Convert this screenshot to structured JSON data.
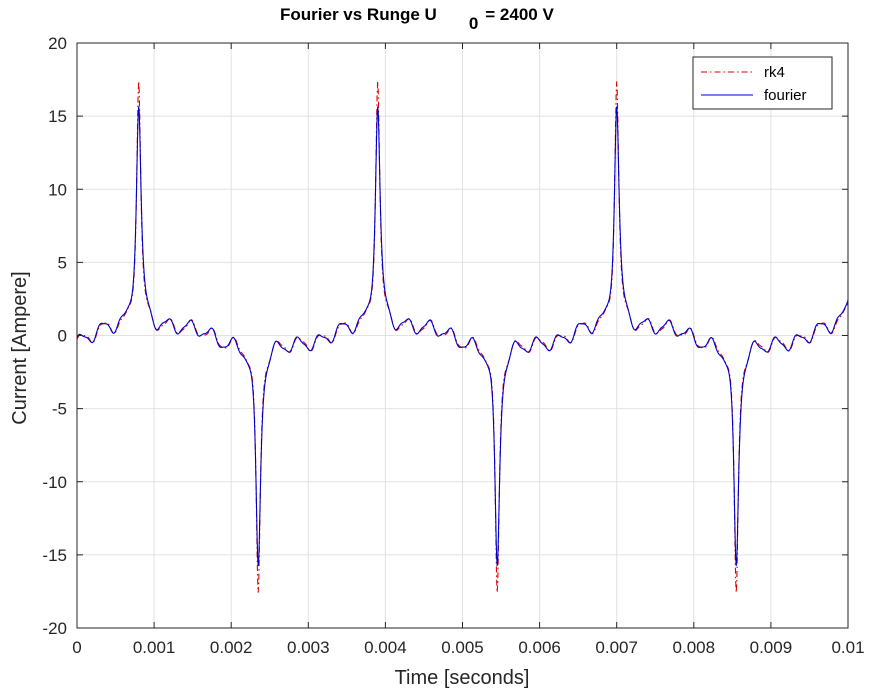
{
  "chart_data": {
    "type": "line",
    "title": {
      "main": "Fourier vs Runge U",
      "subscript": "0",
      "suffix": "= 2400 V"
    },
    "xlabel": "Time [seconds]",
    "ylabel": "Current [Ampere]",
    "xlim": [
      0,
      0.01
    ],
    "ylim": [
      -20,
      20
    ],
    "grid": true,
    "legend_position": "top-right",
    "x_ticks": [
      0,
      0.001,
      0.002,
      0.003,
      0.004,
      0.005,
      0.006,
      0.007,
      0.008,
      0.009,
      0.01
    ],
    "x_tick_labels": [
      "0",
      "0.001",
      "0.002",
      "0.003",
      "0.004",
      "0.005",
      "0.006",
      "0.007",
      "0.008",
      "0.009",
      "0.01"
    ],
    "y_ticks": [
      -20,
      -15,
      -10,
      -5,
      0,
      5,
      10,
      15,
      20
    ],
    "y_tick_labels": [
      "-20",
      "-15",
      "-10",
      "-5",
      "0",
      "5",
      "10",
      "15",
      "20"
    ],
    "period": 0.0031,
    "positive_peak_times": [
      0.0008,
      0.0039,
      0.007,
      0.0101
    ],
    "negative_peak_times": [
      0.00235,
      0.00545,
      0.00855
    ],
    "series": [
      {
        "name": "rk4",
        "color": "#dd0000",
        "style": "dash-dot",
        "peak": 17.7,
        "trough": -17.9
      },
      {
        "name": "fourier",
        "color": "#0000cc",
        "style": "solid",
        "peak": 15.9,
        "trough": -16.0
      }
    ]
  }
}
